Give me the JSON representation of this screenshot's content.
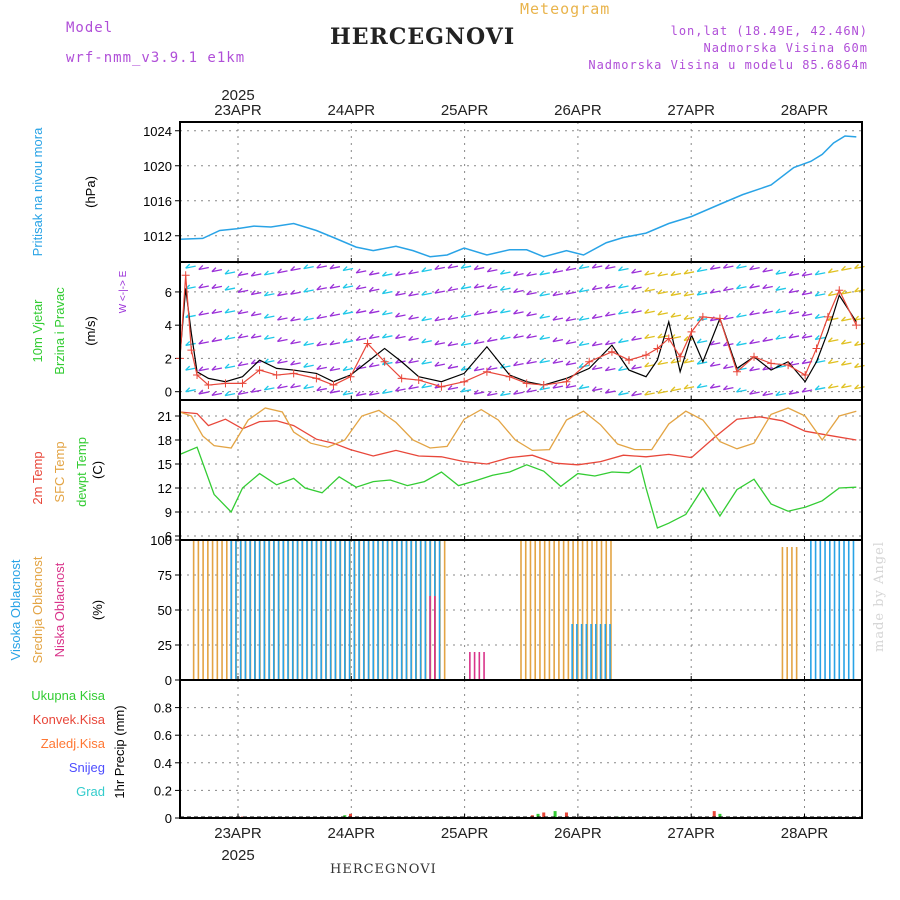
{
  "header": {
    "model_label": "Model",
    "model_name": "wrf-nmm_v3.9.1 e1km",
    "title": "HERCEGNOVI",
    "meteogram": "Meteogram",
    "lonlat": "lon,lat (18.49E, 42.46N)",
    "elevation": "Nadmorska Visina 60m",
    "model_elevation": "Nadmorska Visina u modelu 85.6864m"
  },
  "footer_title": "HERCEGNOVI",
  "watermark": "made by Angel",
  "time_axis": {
    "year": "2025",
    "days": [
      "23APR",
      "24APR",
      "25APR",
      "26APR",
      "27APR",
      "28APR"
    ]
  },
  "colors": {
    "pressure": "#29a3e6",
    "wind_speed": "#000000",
    "wind_gust": "#e8473a",
    "temp2m": "#e8473a",
    "sfc_temp": "#e3a444",
    "dewpoint": "#33cc33",
    "cloud_high": "#29a3e6",
    "cloud_mid": "#e3a444",
    "cloud_low": "#d9338a",
    "precip_total": "#33cc33",
    "precip_conv": "#e8473a",
    "precip_frozen": "#ff7733",
    "precip_snow": "#4d4dff",
    "precip_hail": "#33cccc",
    "wind_cyan": "#1ec8e8",
    "wind_purple": "#9a2fd8"
  },
  "chart_data": [
    {
      "type": "line",
      "panel": "pressure",
      "ylabel_lines": [
        "Pritisak na nivou mora",
        "(hPa)"
      ],
      "ylim": [
        1009,
        1025
      ],
      "yticks": [
        "1012",
        "1016",
        "1020",
        "1024"
      ],
      "ytick_values": [
        1012,
        1016,
        1020,
        1024
      ],
      "x": [
        0,
        0.2,
        0.35,
        0.5,
        0.65,
        0.8,
        1.0,
        1.2,
        1.35,
        1.55,
        1.7,
        1.9,
        2.05,
        2.2,
        2.35,
        2.5,
        2.7,
        2.9,
        3.05,
        3.2,
        3.4,
        3.55,
        3.75,
        3.9,
        4.1,
        4.3,
        4.5,
        4.75,
        4.95,
        5.2,
        5.4,
        5.55,
        5.65,
        5.75,
        5.85,
        5.95
      ],
      "values": [
        1011.6,
        1011.7,
        1012.6,
        1012.8,
        1013.1,
        1013.0,
        1013.4,
        1012.6,
        1011.8,
        1010.7,
        1010.3,
        1010.8,
        1010.3,
        1009.6,
        1009.8,
        1010.6,
        1009.8,
        1010.4,
        1010.4,
        1009.6,
        1010.3,
        1009.8,
        1011.2,
        1011.8,
        1012.3,
        1013.4,
        1014.2,
        1015.6,
        1016.7,
        1017.8,
        1019.8,
        1020.5,
        1021.3,
        1022.6,
        1023.4,
        1023.3
      ]
    },
    {
      "type": "line",
      "panel": "wind",
      "ylabel_lines": [
        "10m Vjetar",
        "Brzina i Pravac",
        "(m/s)"
      ],
      "compass": "W <-|-> E",
      "ylim": [
        -0.5,
        7.8
      ],
      "yticks": [
        "0",
        "2",
        "4",
        "6"
      ],
      "ytick_values": [
        0,
        2,
        4,
        6
      ],
      "series": [
        {
          "name": "speed",
          "x": [
            0,
            0.05,
            0.1,
            0.15,
            0.25,
            0.4,
            0.55,
            0.7,
            0.85,
            1.0,
            1.2,
            1.35,
            1.5,
            1.65,
            1.8,
            1.95,
            2.1,
            2.3,
            2.5,
            2.7,
            2.9,
            3.05,
            3.2,
            3.4,
            3.6,
            3.8,
            3.95,
            4.1,
            4.2,
            4.3,
            4.4,
            4.5,
            4.6,
            4.75,
            4.9,
            5.05,
            5.2,
            5.35,
            5.5,
            5.6,
            5.7,
            5.8,
            5.95
          ],
          "values": [
            2.2,
            6.2,
            3.5,
            1.2,
            0.8,
            0.6,
            0.9,
            1.9,
            1.4,
            1.3,
            1.1,
            0.6,
            1.0,
            1.8,
            2.6,
            1.8,
            0.9,
            0.6,
            1.1,
            2.7,
            1.0,
            0.6,
            0.4,
            0.8,
            1.4,
            2.8,
            1.3,
            0.9,
            1.9,
            4.2,
            1.2,
            3.4,
            1.8,
            4.4,
            1.4,
            2.1,
            1.3,
            1.8,
            0.6,
            1.8,
            3.6,
            5.8,
            4.2
          ]
        },
        {
          "name": "gust",
          "x": [
            0,
            0.05,
            0.1,
            0.15,
            0.25,
            0.4,
            0.55,
            0.7,
            0.85,
            1.0,
            1.2,
            1.35,
            1.5,
            1.65,
            1.8,
            1.95,
            2.1,
            2.3,
            2.5,
            2.7,
            2.9,
            3.05,
            3.2,
            3.4,
            3.6,
            3.8,
            3.95,
            4.1,
            4.2,
            4.3,
            4.4,
            4.5,
            4.6,
            4.75,
            4.9,
            5.05,
            5.2,
            5.35,
            5.5,
            5.6,
            5.7,
            5.8,
            5.95
          ],
          "values": [
            2.0,
            7.0,
            2.5,
            1.0,
            0.4,
            0.5,
            0.5,
            1.3,
            1.0,
            1.1,
            0.8,
            0.4,
            0.9,
            2.9,
            1.8,
            0.8,
            0.7,
            0.3,
            0.6,
            1.2,
            0.9,
            0.5,
            0.4,
            0.6,
            1.8,
            2.4,
            1.9,
            2.2,
            2.6,
            3.2,
            2.1,
            3.6,
            4.5,
            4.4,
            1.2,
            2.1,
            1.7,
            1.6,
            1.0,
            2.6,
            4.5,
            6.1,
            4.0
          ]
        }
      ]
    },
    {
      "type": "line",
      "panel": "temperature",
      "ylabel_lines": [
        "2m Temp",
        "SFC Temp",
        "dewpt Temp",
        "(C)"
      ],
      "ylim": [
        5.5,
        23
      ],
      "yticks": [
        "6",
        "9",
        "12",
        "15",
        "18",
        "21"
      ],
      "ytick_values": [
        6,
        9,
        12,
        15,
        18,
        21
      ],
      "series": [
        {
          "name": "2m Temp",
          "x": [
            0,
            0.15,
            0.25,
            0.4,
            0.55,
            0.7,
            0.85,
            1.0,
            1.2,
            1.35,
            1.5,
            1.7,
            1.9,
            2.1,
            2.3,
            2.5,
            2.7,
            2.9,
            3.1,
            3.3,
            3.5,
            3.7,
            3.9,
            4.1,
            4.3,
            4.5,
            4.7,
            4.9,
            5.1,
            5.3,
            5.5,
            5.7,
            5.95
          ],
          "values": [
            21.5,
            21.3,
            19.8,
            20.6,
            19.4,
            20.3,
            20.4,
            19.8,
            18.1,
            17.6,
            16.8,
            16.0,
            16.7,
            16.0,
            15.9,
            15.3,
            15.0,
            15.8,
            16.1,
            15.1,
            14.9,
            15.3,
            16.1,
            15.9,
            16.2,
            15.8,
            18.3,
            20.6,
            20.9,
            20.4,
            19.1,
            18.6,
            18.0
          ]
        },
        {
          "name": "SFC Temp",
          "x": [
            0,
            0.1,
            0.2,
            0.3,
            0.45,
            0.6,
            0.75,
            0.9,
            1.0,
            1.15,
            1.3,
            1.45,
            1.6,
            1.75,
            1.9,
            2.05,
            2.2,
            2.35,
            2.5,
            2.65,
            2.8,
            2.95,
            3.1,
            3.25,
            3.4,
            3.55,
            3.7,
            3.85,
            4.0,
            4.15,
            4.3,
            4.45,
            4.6,
            4.75,
            4.9,
            5.05,
            5.2,
            5.35,
            5.5,
            5.65,
            5.8,
            5.95
          ],
          "values": [
            21.5,
            21.0,
            18.5,
            17.3,
            17.0,
            20.5,
            22.0,
            21.5,
            19.0,
            17.6,
            17.1,
            18.0,
            21.0,
            21.7,
            20.2,
            18.0,
            17.0,
            17.2,
            20.6,
            21.8,
            20.5,
            18.0,
            16.7,
            16.8,
            20.5,
            21.6,
            19.9,
            17.5,
            16.8,
            16.8,
            20.0,
            21.6,
            20.5,
            17.8,
            16.9,
            17.6,
            21.2,
            22.0,
            21.0,
            18.0,
            21.0,
            21.6
          ]
        },
        {
          "name": "dewpt Temp",
          "x": [
            0,
            0.15,
            0.3,
            0.45,
            0.55,
            0.7,
            0.85,
            1.0,
            1.1,
            1.25,
            1.4,
            1.55,
            1.7,
            1.85,
            2.0,
            2.15,
            2.3,
            2.45,
            2.6,
            2.75,
            2.9,
            3.05,
            3.2,
            3.35,
            3.5,
            3.65,
            3.8,
            3.95,
            4.05,
            4.1,
            4.2,
            4.3,
            4.45,
            4.6,
            4.75,
            4.9,
            5.05,
            5.2,
            5.35,
            5.5,
            5.65,
            5.8,
            5.95
          ],
          "values": [
            16.2,
            17.1,
            11.2,
            9.0,
            12.0,
            13.8,
            12.4,
            13.2,
            12.0,
            11.4,
            13.4,
            12.1,
            12.8,
            13.0,
            12.3,
            12.8,
            14.0,
            12.3,
            12.9,
            13.6,
            14.0,
            14.9,
            14.1,
            12.2,
            13.8,
            13.5,
            14.0,
            13.9,
            14.8,
            12.0,
            7.0,
            7.6,
            8.7,
            12.0,
            8.5,
            11.8,
            13.1,
            10.0,
            9.1,
            9.6,
            10.4,
            12.0,
            12.1
          ]
        }
      ]
    },
    {
      "type": "bar",
      "panel": "clouds",
      "ylabel_lines": [
        "Visoka Oblacnost",
        "Srednja Oblacnost",
        "Niska Oblacnost",
        "(%)"
      ],
      "ylim": [
        0,
        100
      ],
      "yticks": [
        "0",
        "25",
        "50",
        "75",
        "100"
      ],
      "ytick_values": [
        0,
        25,
        50,
        75,
        100
      ],
      "series": [
        {
          "name": "Srednja Oblacnost",
          "segments": [
            {
              "from": 0.12,
              "to": 2.35,
              "value": 100
            },
            {
              "from": 3.0,
              "to": 3.8,
              "value": 100
            },
            {
              "from": 5.3,
              "to": 5.45,
              "value": 95
            }
          ]
        },
        {
          "name": "Visoka Oblacnost",
          "segments": [
            {
              "from": 0.45,
              "to": 2.3,
              "value": 100
            },
            {
              "from": 3.45,
              "to": 3.8,
              "value": 40
            },
            {
              "from": 5.55,
              "to": 5.95,
              "value": 100
            }
          ]
        },
        {
          "name": "Niska Oblacnost",
          "segments": [
            {
              "from": 2.2,
              "to": 2.25,
              "value": 60
            },
            {
              "from": 2.55,
              "to": 2.7,
              "value": 20
            }
          ]
        }
      ]
    },
    {
      "type": "bar",
      "panel": "precipitation",
      "ylabel_lines": [
        "1hr Precip (mm)"
      ],
      "legend": [
        "Ukupna Kisa",
        "Konvek.Kisa",
        "Zaledj.Kisa",
        "Snijeg",
        "Grad"
      ],
      "ylim": [
        0,
        1.0
      ],
      "yticks": [
        "0",
        "0.2",
        "0.4",
        "0.6",
        "0.8"
      ],
      "ytick_values": [
        0,
        0.2,
        0.4,
        0.6,
        0.8
      ],
      "x": [
        0.55,
        1.45,
        1.5,
        2.35,
        3.1,
        3.15,
        3.2,
        3.3,
        3.4,
        3.85,
        4.7,
        4.75
      ],
      "values": [
        0.01,
        0.02,
        0.03,
        0.01,
        0.02,
        0.03,
        0.04,
        0.05,
        0.04,
        0.01,
        0.05,
        0.03
      ]
    }
  ]
}
